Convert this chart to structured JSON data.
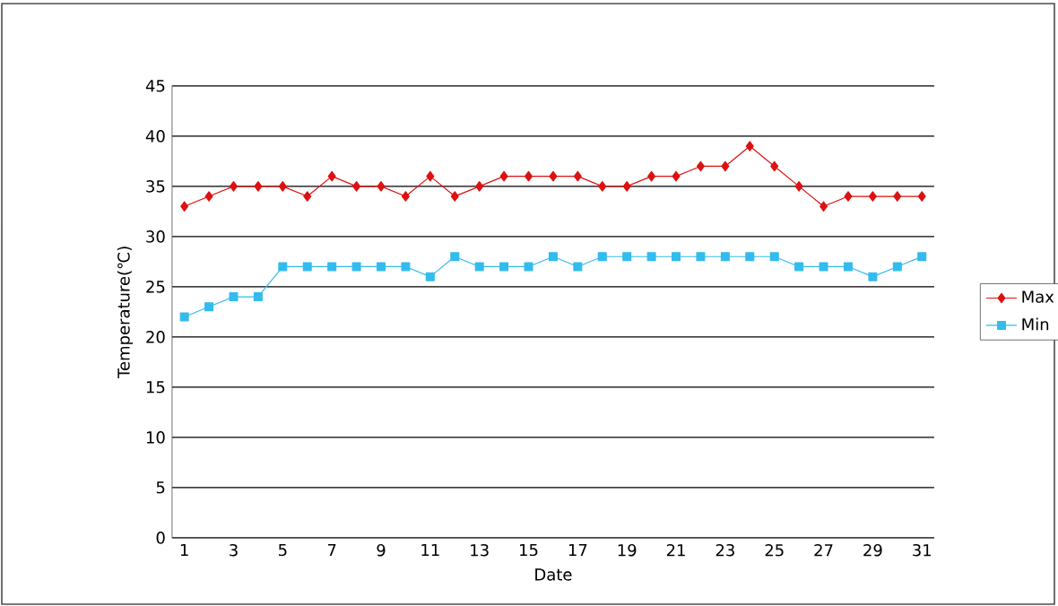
{
  "chart_data": {
    "type": "line",
    "xlabel": "Date",
    "ylabel": "Temperature(℃)",
    "x": [
      1,
      2,
      3,
      4,
      5,
      6,
      7,
      8,
      9,
      10,
      11,
      12,
      13,
      14,
      15,
      16,
      17,
      18,
      19,
      20,
      21,
      22,
      23,
      24,
      25,
      26,
      27,
      28,
      29,
      30,
      31
    ],
    "xlim": [
      0.5,
      31.5
    ],
    "xticks": [
      1,
      3,
      5,
      7,
      9,
      11,
      13,
      15,
      17,
      19,
      21,
      23,
      25,
      27,
      29,
      31
    ],
    "ylim": [
      0,
      45
    ],
    "yticks": [
      0,
      5,
      10,
      15,
      20,
      25,
      30,
      35,
      40,
      45
    ],
    "grid": "y",
    "legend": "right",
    "series": [
      {
        "name": "Max",
        "color": "#dd1111",
        "marker": "diamond",
        "values": [
          33,
          34,
          35,
          35,
          35,
          34,
          36,
          35,
          35,
          34,
          36,
          34,
          35,
          36,
          36,
          36,
          36,
          35,
          35,
          36,
          36,
          37,
          37,
          39,
          37,
          35,
          33,
          34,
          34,
          34,
          34
        ]
      },
      {
        "name": "Min",
        "color": "#33bbee",
        "marker": "square",
        "values": [
          22,
          23,
          24,
          24,
          27,
          27,
          27,
          27,
          27,
          27,
          26,
          28,
          27,
          27,
          27,
          28,
          27,
          28,
          28,
          28,
          28,
          28,
          28,
          28,
          28,
          27,
          27,
          27,
          26,
          27,
          28
        ]
      }
    ]
  }
}
